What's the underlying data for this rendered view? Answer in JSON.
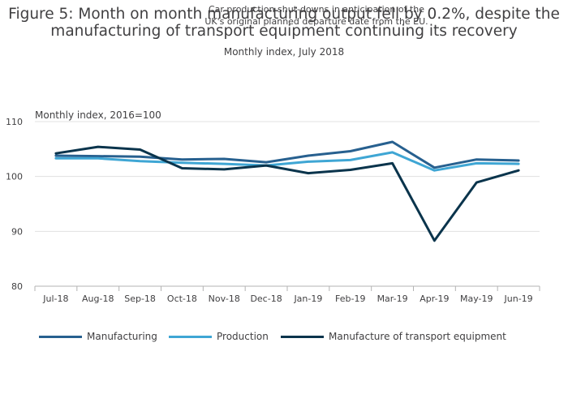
{
  "title_lines": [
    "Figure 5: Month on month manufacturing output fell by 0.2%, despite the",
    "manufacturing of transport equipment continuing its recovery"
  ],
  "subtitle": "Monthly index, July 2018",
  "annotation_lines": [
    "Car production shut-downs in anticipation of the",
    "UK's original planned departure date from the EU."
  ],
  "colors": {
    "manufacturing": "#27608f",
    "production": "#3fa6d4",
    "transport": "#0a344c",
    "grid": "#e1e1e1",
    "axis": "#b3b3b3"
  },
  "chart_data": {
    "type": "line",
    "title": "Figure 5: Month on month manufacturing output fell by 0.2%, despite the manufacturing of transport equipment continuing its recovery",
    "subtitle": "Monthly index, July 2018",
    "ylabel": "Monthly index, 2016=100",
    "xlabel": "",
    "categories": [
      "Jul-18",
      "Aug-18",
      "Sep-18",
      "Oct-18",
      "Nov-18",
      "Dec-18",
      "Jan-19",
      "Feb-19",
      "Mar-19",
      "Apr-19",
      "May-19",
      "Jun-19"
    ],
    "ylim": [
      80,
      110
    ],
    "yticks": [
      80,
      90,
      100,
      110
    ],
    "grid": true,
    "legend_position": "bottom",
    "series": [
      {
        "name": "Manufacturing",
        "color_key": "manufacturing",
        "values": [
          103.8,
          103.7,
          103.6,
          103.1,
          103.2,
          102.6,
          103.8,
          104.6,
          106.3,
          101.6,
          103.1,
          102.9
        ]
      },
      {
        "name": "Production",
        "color_key": "production",
        "values": [
          103.3,
          103.3,
          102.8,
          102.5,
          102.3,
          102.0,
          102.7,
          103.0,
          104.4,
          101.1,
          102.4,
          102.3
        ]
      },
      {
        "name": "Manufacture of transport equipment",
        "color_key": "transport",
        "values": [
          104.2,
          105.4,
          104.9,
          101.5,
          101.3,
          102.0,
          100.6,
          101.2,
          102.4,
          88.3,
          98.9,
          101.1
        ]
      }
    ]
  }
}
